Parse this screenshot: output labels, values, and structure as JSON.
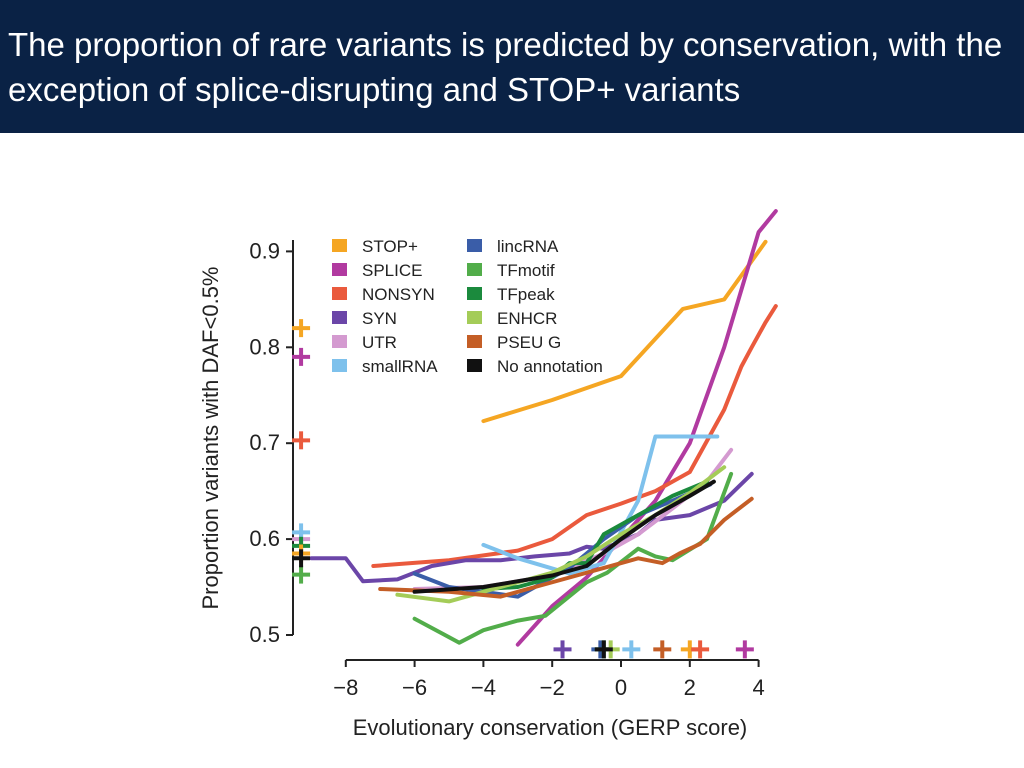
{
  "slide": {
    "title": "The proportion of rare variants is predicted by conservation, with the exception of splice-disrupting and STOP+ variants"
  },
  "chart_data": {
    "type": "line",
    "xlabel": "Evolutionary conservation (GERP score)",
    "ylabel": "Proportion variants with DAF<0.5%",
    "xlim": [
      -9,
      4
    ],
    "ylim": [
      0.5,
      0.92
    ],
    "xticks": [
      "−8",
      "−6",
      "−4",
      "−2",
      "0",
      "2",
      "4"
    ],
    "yticks": [
      "0.5",
      "0.6",
      "0.7",
      "0.8",
      "0.9"
    ],
    "legend_position": "top-left",
    "series": [
      {
        "name": "STOP+",
        "color": "#f5a623",
        "x": [
          -4,
          -2,
          0,
          1.8,
          3,
          4.2
        ],
        "y": [
          0.723,
          0.745,
          0.77,
          0.84,
          0.85,
          0.91
        ],
        "summary": {
          "x": -9.3,
          "y": 0.82
        }
      },
      {
        "name": "SPLICE",
        "color": "#b13aa0",
        "x": [
          -3,
          -2,
          -1,
          0,
          1,
          2,
          3,
          4,
          4.5
        ],
        "y": [
          0.49,
          0.53,
          0.56,
          0.6,
          0.64,
          0.7,
          0.8,
          0.92,
          0.942
        ],
        "summary": {
          "x": -9.3,
          "y": 0.79
        }
      },
      {
        "name": "NONSYN",
        "color": "#ea5a3d",
        "x": [
          -7.2,
          -5,
          -3,
          -2,
          -1,
          0,
          1,
          2,
          3,
          3.5,
          3.8,
          4.2,
          4.5
        ],
        "y": [
          0.572,
          0.578,
          0.588,
          0.6,
          0.625,
          0.637,
          0.65,
          0.67,
          0.735,
          0.78,
          0.8,
          0.826,
          0.843
        ],
        "summary": {
          "x": -9.3,
          "y": 0.703
        }
      },
      {
        "name": "SYN",
        "color": "#6b46a8",
        "x": [
          -9,
          -8,
          -7.5,
          -6.5,
          -5.5,
          -4.5,
          -3.5,
          -2.5,
          -1.5,
          -1,
          -0.5,
          0.5,
          1,
          2,
          3,
          3.8
        ],
        "y": [
          0.58,
          0.58,
          0.556,
          0.558,
          0.572,
          0.578,
          0.578,
          0.582,
          0.585,
          0.592,
          0.59,
          0.605,
          0.62,
          0.625,
          0.64,
          0.668
        ],
        "summary": {
          "x": -1.7,
          "y": 0.485
        }
      },
      {
        "name": "UTR",
        "color": "#d49ad0",
        "x": [
          -6,
          -4,
          -2,
          -0.5,
          0.5,
          1.5,
          2.5,
          3.2
        ],
        "y": [
          0.548,
          0.55,
          0.562,
          0.585,
          0.605,
          0.632,
          0.66,
          0.693
        ],
        "summary": {
          "x": -9.3,
          "y": 0.6
        }
      },
      {
        "name": "smallRNA",
        "color": "#7ec1ec",
        "x": [
          -4,
          -3,
          -1.5,
          -0.5,
          0.5,
          1,
          2.8
        ],
        "y": [
          0.594,
          0.58,
          0.564,
          0.575,
          0.64,
          0.707,
          0.707
        ],
        "summary": {
          "x": 0.3,
          "y": 0.485
        }
      },
      {
        "name": "lincRNA",
        "color": "#3a5da8",
        "x": [
          -6,
          -5,
          -3,
          -1.5,
          -0.5,
          0.5,
          1.5,
          2.6
        ],
        "y": [
          0.564,
          0.55,
          0.54,
          0.57,
          0.6,
          0.625,
          0.64,
          0.657
        ],
        "summary": {
          "x": -0.6,
          "y": 0.485
        }
      },
      {
        "name": "TFmotif",
        "color": "#52ad4a",
        "x": [
          -6,
          -4.7,
          -4,
          -3,
          -2.2,
          -1,
          -0.4,
          0.5,
          1,
          1.5,
          2.5,
          3.2
        ],
        "y": [
          0.517,
          0.492,
          0.505,
          0.515,
          0.52,
          0.555,
          0.565,
          0.59,
          0.582,
          0.578,
          0.6,
          0.668
        ],
        "summary": {
          "x": -9.3,
          "y": 0.563
        }
      },
      {
        "name": "TFpeak",
        "color": "#1b8a3d",
        "x": [
          -4,
          -3,
          -2,
          -1.5,
          -1,
          -0.5,
          0.5,
          1.5,
          2.5
        ],
        "y": [
          0.548,
          0.55,
          0.56,
          0.575,
          0.575,
          0.605,
          0.625,
          0.645,
          0.66
        ],
        "summary": {
          "x": -0.5,
          "y": 0.485
        }
      },
      {
        "name": "ENHCR",
        "color": "#a4cc58",
        "x": [
          -6.5,
          -5,
          -4,
          -3,
          -2,
          -1,
          0,
          1,
          2,
          3
        ],
        "y": [
          0.542,
          0.535,
          0.545,
          0.555,
          0.565,
          0.582,
          0.605,
          0.625,
          0.648,
          0.675
        ],
        "summary": {
          "x": -0.3,
          "y": 0.485
        }
      },
      {
        "name": "PSEU G",
        "color": "#c45e26",
        "x": [
          -7,
          -5,
          -3.5,
          -2.5,
          -1.5,
          -0.5,
          0.5,
          1.2,
          1.7,
          2.3,
          3,
          3.8
        ],
        "y": [
          0.548,
          0.545,
          0.54,
          0.55,
          0.56,
          0.57,
          0.58,
          0.575,
          0.585,
          0.595,
          0.62,
          0.642
        ],
        "summary": {
          "x": 1.2,
          "y": 0.485
        }
      },
      {
        "name": "No annotation",
        "color": "#111111",
        "x": [
          -6,
          -4,
          -2,
          -1,
          0,
          1,
          2,
          2.7
        ],
        "y": [
          0.545,
          0.55,
          0.562,
          0.572,
          0.6,
          0.625,
          0.645,
          0.66
        ],
        "summary": {
          "x": -0.5,
          "y": 0.485
        }
      }
    ],
    "extra_summary_marks": [
      {
        "color": "#f5a623",
        "x": 2.0,
        "y": 0.485
      },
      {
        "color": "#ea5a3d",
        "x": 2.3,
        "y": 0.485
      },
      {
        "color": "#b13aa0",
        "x": 3.6,
        "y": 0.485
      },
      {
        "color": "#7ec1ec",
        "x": -9.3,
        "y": 0.607
      },
      {
        "color": "#1b8a3d",
        "x": -9.3,
        "y": 0.593
      },
      {
        "color": "#f5a623",
        "x": -9.3,
        "y": 0.585
      },
      {
        "color": "#111111",
        "x": -9.3,
        "y": 0.58
      }
    ]
  }
}
